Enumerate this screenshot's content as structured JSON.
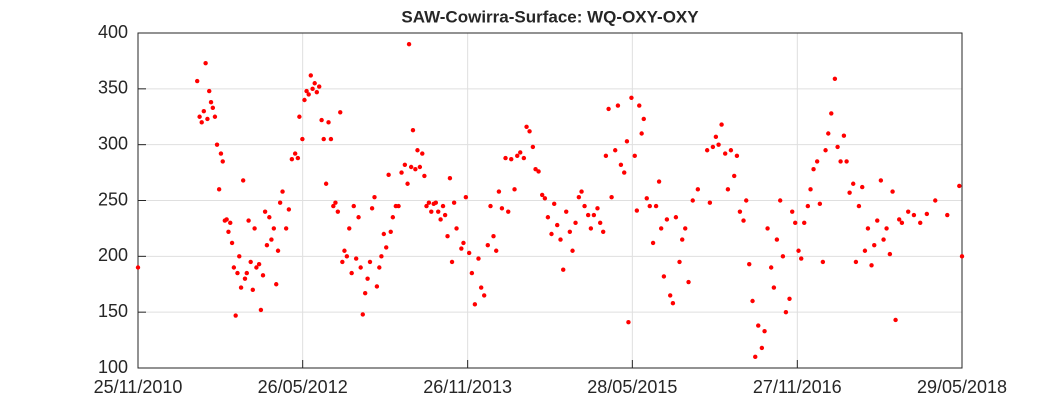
{
  "chart_data": {
    "type": "scatter",
    "title": "SAW-Cowirra-Surface: WQ-OXY-OXY",
    "color": "#ff0000",
    "grid": true,
    "xlim": [
      "2010-11-25",
      "2018-05-29"
    ],
    "xticks": [
      {
        "value": "2010-11-25",
        "label": "25/11/2010"
      },
      {
        "value": "2012-05-26",
        "label": "26/05/2012"
      },
      {
        "value": "2013-11-26",
        "label": "26/11/2013"
      },
      {
        "value": "2015-05-28",
        "label": "28/05/2015"
      },
      {
        "value": "2016-11-27",
        "label": "27/11/2016"
      },
      {
        "value": "2018-05-29",
        "label": "29/05/2018"
      }
    ],
    "ylim": [
      100,
      400
    ],
    "yticks": [
      100,
      150,
      200,
      250,
      300,
      350,
      400
    ],
    "x": [
      "2010-11-25",
      "2011-06-10",
      "2011-06-18",
      "2011-06-25",
      "2011-07-02",
      "2011-07-08",
      "2011-07-14",
      "2011-07-20",
      "2011-07-26",
      "2011-08-01",
      "2011-08-08",
      "2011-08-15",
      "2011-08-22",
      "2011-08-28",
      "2011-09-03",
      "2011-09-10",
      "2011-09-16",
      "2011-09-22",
      "2011-09-28",
      "2011-10-04",
      "2011-10-10",
      "2011-10-16",
      "2011-10-22",
      "2011-10-28",
      "2011-11-03",
      "2011-11-10",
      "2011-11-16",
      "2011-11-22",
      "2011-11-28",
      "2011-12-05",
      "2011-12-12",
      "2011-12-18",
      "2011-12-24",
      "2012-01-02",
      "2012-01-08",
      "2012-01-15",
      "2012-01-22",
      "2012-01-28",
      "2012-02-05",
      "2012-02-12",
      "2012-02-20",
      "2012-02-28",
      "2012-03-05",
      "2012-03-12",
      "2012-03-20",
      "2012-04-01",
      "2012-04-10",
      "2012-04-20",
      "2012-05-01",
      "2012-05-10",
      "2012-05-15",
      "2012-05-25",
      "2012-06-01",
      "2012-06-08",
      "2012-06-15",
      "2012-06-22",
      "2012-06-28",
      "2012-07-05",
      "2012-07-12",
      "2012-07-20",
      "2012-07-28",
      "2012-08-04",
      "2012-08-12",
      "2012-08-20",
      "2012-08-28",
      "2012-09-05",
      "2012-09-12",
      "2012-09-20",
      "2012-09-28",
      "2012-10-05",
      "2012-10-12",
      "2012-10-20",
      "2012-10-28",
      "2012-11-05",
      "2012-11-12",
      "2012-11-20",
      "2012-11-28",
      "2012-12-05",
      "2012-12-12",
      "2012-12-20",
      "2012-12-28",
      "2013-01-05",
      "2013-01-12",
      "2013-01-20",
      "2013-01-28",
      "2013-02-05",
      "2013-02-12",
      "2013-02-20",
      "2013-02-28",
      "2013-03-08",
      "2013-03-15",
      "2013-03-22",
      "2013-04-01",
      "2013-04-10",
      "2013-04-20",
      "2013-05-01",
      "2013-05-10",
      "2013-05-15",
      "2013-05-22",
      "2013-05-28",
      "2013-06-05",
      "2013-06-12",
      "2013-06-20",
      "2013-06-28",
      "2013-07-05",
      "2013-07-12",
      "2013-07-20",
      "2013-07-28",
      "2013-08-05",
      "2013-08-12",
      "2013-08-20",
      "2013-08-28",
      "2013-09-05",
      "2013-09-12",
      "2013-09-20",
      "2013-09-28",
      "2013-10-05",
      "2013-10-12",
      "2013-10-20",
      "2013-11-05",
      "2013-11-12",
      "2013-11-20",
      "2013-12-01",
      "2013-12-10",
      "2013-12-20",
      "2014-01-01",
      "2014-01-10",
      "2014-01-20",
      "2014-02-01",
      "2014-02-10",
      "2014-02-20",
      "2014-03-01",
      "2014-03-10",
      "2014-03-20",
      "2014-04-01",
      "2014-04-10",
      "2014-04-20",
      "2014-05-01",
      "2014-05-10",
      "2014-05-20",
      "2014-06-01",
      "2014-06-10",
      "2014-06-20",
      "2014-07-01",
      "2014-07-10",
      "2014-07-20",
      "2014-08-01",
      "2014-08-10",
      "2014-08-20",
      "2014-09-01",
      "2014-09-10",
      "2014-09-20",
      "2014-10-01",
      "2014-10-10",
      "2014-10-20",
      "2014-11-01",
      "2014-11-10",
      "2014-11-20",
      "2014-12-01",
      "2014-12-10",
      "2014-12-20",
      "2015-01-01",
      "2015-01-10",
      "2015-01-20",
      "2015-02-01",
      "2015-02-10",
      "2015-02-20",
      "2015-03-01",
      "2015-03-10",
      "2015-03-20",
      "2015-04-01",
      "2015-04-10",
      "2015-04-20",
      "2015-05-01",
      "2015-05-10",
      "2015-05-15",
      "2015-05-25",
      "2015-06-05",
      "2015-06-12",
      "2015-06-20",
      "2015-06-28",
      "2015-07-05",
      "2015-07-15",
      "2015-07-25",
      "2015-08-05",
      "2015-08-15",
      "2015-08-25",
      "2015-09-01",
      "2015-09-10",
      "2015-09-20",
      "2015-10-01",
      "2015-10-10",
      "2015-10-20",
      "2015-11-01",
      "2015-11-10",
      "2015-11-20",
      "2015-12-01",
      "2015-12-15",
      "2016-01-01",
      "2016-02-01",
      "2016-02-10",
      "2016-02-20",
      "2016-03-01",
      "2016-03-10",
      "2016-03-20",
      "2016-04-01",
      "2016-04-10",
      "2016-04-20",
      "2016-05-01",
      "2016-05-10",
      "2016-05-20",
      "2016-06-01",
      "2016-06-10",
      "2016-06-20",
      "2016-07-01",
      "2016-07-10",
      "2016-07-20",
      "2016-08-01",
      "2016-08-10",
      "2016-08-20",
      "2016-09-01",
      "2016-09-10",
      "2016-09-20",
      "2016-10-01",
      "2016-10-10",
      "2016-10-20",
      "2016-11-01",
      "2016-11-10",
      "2016-11-20",
      "2016-12-01",
      "2016-12-10",
      "2016-12-20",
      "2017-01-01",
      "2017-01-10",
      "2017-01-20",
      "2017-02-01",
      "2017-02-10",
      "2017-02-20",
      "2017-03-01",
      "2017-03-10",
      "2017-03-20",
      "2017-04-01",
      "2017-04-10",
      "2017-04-20",
      "2017-05-01",
      "2017-05-10",
      "2017-05-20",
      "2017-06-01",
      "2017-06-10",
      "2017-06-20",
      "2017-07-01",
      "2017-07-10",
      "2017-07-20",
      "2017-08-01",
      "2017-08-10",
      "2017-08-20",
      "2017-09-01",
      "2017-09-10",
      "2017-09-20",
      "2017-10-01",
      "2017-10-10",
      "2017-10-20",
      "2017-11-01",
      "2017-11-10",
      "2017-12-01",
      "2017-12-20",
      "2018-01-10",
      "2018-02-01",
      "2018-03-01",
      "2018-04-10",
      "2018-05-20",
      "2018-05-29"
    ],
    "values": [
      190,
      357,
      325,
      320,
      330,
      373,
      323,
      348,
      338,
      333,
      325,
      300,
      260,
      292,
      285,
      232,
      233,
      222,
      230,
      212,
      190,
      147,
      185,
      200,
      172,
      268,
      180,
      185,
      232,
      195,
      170,
      225,
      190,
      193,
      152,
      183,
      240,
      210,
      235,
      215,
      225,
      175,
      205,
      248,
      258,
      225,
      242,
      287,
      292,
      288,
      325,
      305,
      340,
      348,
      345,
      362,
      350,
      355,
      347,
      352,
      322,
      305,
      265,
      320,
      305,
      245,
      248,
      240,
      329,
      195,
      205,
      200,
      225,
      185,
      245,
      198,
      235,
      190,
      148,
      167,
      180,
      195,
      243,
      253,
      173,
      190,
      200,
      220,
      208,
      273,
      222,
      235,
      245,
      245,
      275,
      282,
      265,
      390,
      280,
      313,
      278,
      295,
      280,
      292,
      272,
      245,
      248,
      240,
      247,
      248,
      240,
      233,
      245,
      237,
      218,
      270,
      195,
      248,
      225,
      207,
      212,
      253,
      203,
      185,
      157,
      198,
      172,
      165,
      210,
      245,
      218,
      205,
      258,
      243,
      288,
      240,
      287,
      260,
      290,
      293,
      288,
      316,
      312,
      298,
      278,
      276,
      255,
      252,
      235,
      220,
      247,
      228,
      215,
      188,
      240,
      222,
      205,
      230,
      253,
      258,
      245,
      237,
      225,
      237,
      243,
      230,
      222,
      290,
      332,
      253,
      295,
      335,
      282,
      275,
      303,
      141,
      342,
      290,
      241,
      335,
      310,
      323,
      252,
      245,
      212,
      245,
      267,
      225,
      182,
      233,
      165,
      158,
      235,
      195,
      215,
      225,
      177,
      250,
      260,
      295,
      248,
      298,
      307,
      300,
      318,
      292,
      260,
      295,
      272,
      290,
      240,
      232,
      250,
      193,
      160,
      110,
      138,
      118,
      133,
      225,
      190,
      172,
      215,
      250,
      200,
      150,
      162,
      240,
      230,
      205,
      198,
      230,
      245,
      260,
      278,
      285,
      247,
      195,
      295,
      310,
      328,
      359,
      298,
      285,
      308,
      285,
      257,
      265,
      195,
      245,
      262,
      205,
      225,
      192,
      210,
      232,
      268,
      215,
      225,
      202,
      258,
      143,
      233,
      230,
      240,
      237,
      230,
      238,
      250,
      237,
      263,
      200
    ]
  }
}
